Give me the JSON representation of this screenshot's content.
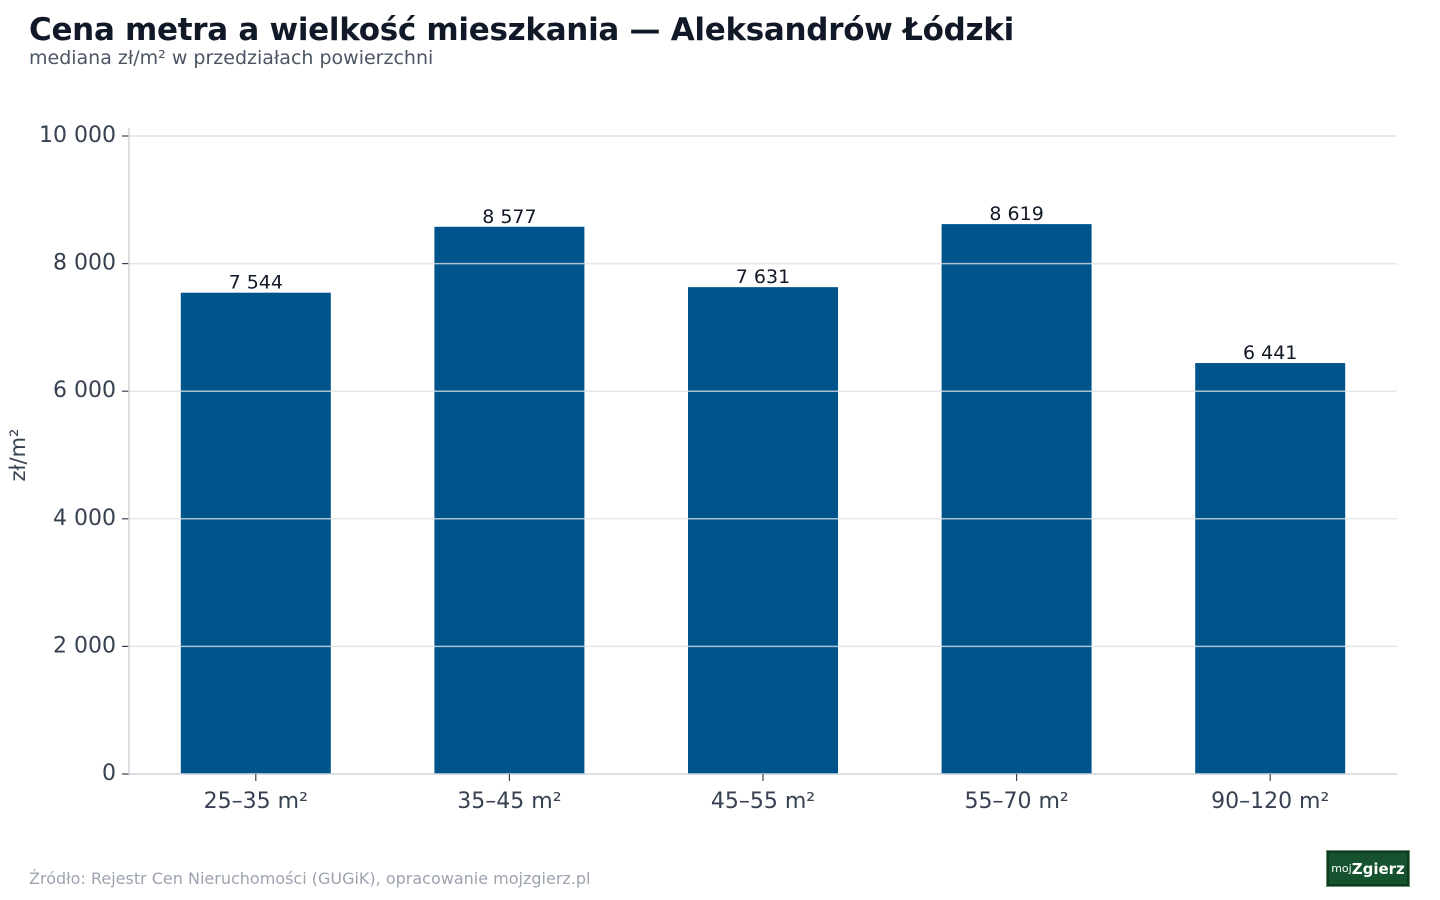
{
  "header": {
    "title": "Cena metra a wielkość mieszkania — Aleksandrów Łódzki",
    "subtitle": "mediana zł/m² w przedziałach powierzchni"
  },
  "footer": {
    "source": "Źródło: Rejestr Cen Nieruchomości (GUGiK), opracowanie mojzgierz.pl",
    "logo_prefix": "moj",
    "logo_main": "Zgierz"
  },
  "colors": {
    "bar": "#00548c",
    "grid": "#e5e7eb",
    "axis": "#374151",
    "logo_bg": "#14532d"
  },
  "chart_data": {
    "type": "bar",
    "title": "Cena metra a wielkość mieszkania — Aleksandrów Łódzki",
    "subtitle": "mediana zł/m² w przedziałach powierzchni",
    "categories": [
      "25–35 m²",
      "35–45 m²",
      "45–55 m²",
      "55–70 m²",
      "90–120 m²"
    ],
    "values": [
      7544,
      8577,
      7631,
      8619,
      6441
    ],
    "value_labels": [
      "7 544",
      "8 577",
      "7 631",
      "8 619",
      "6 441"
    ],
    "xlabel": "",
    "ylabel": "zł/m²",
    "ylim": [
      0,
      10000
    ],
    "yticks": [
      0,
      2000,
      4000,
      6000,
      8000,
      10000
    ],
    "ytick_labels": [
      "0",
      "2 000",
      "4 000",
      "6 000",
      "8 000",
      "10 000"
    ],
    "grid": true,
    "legend": false
  }
}
